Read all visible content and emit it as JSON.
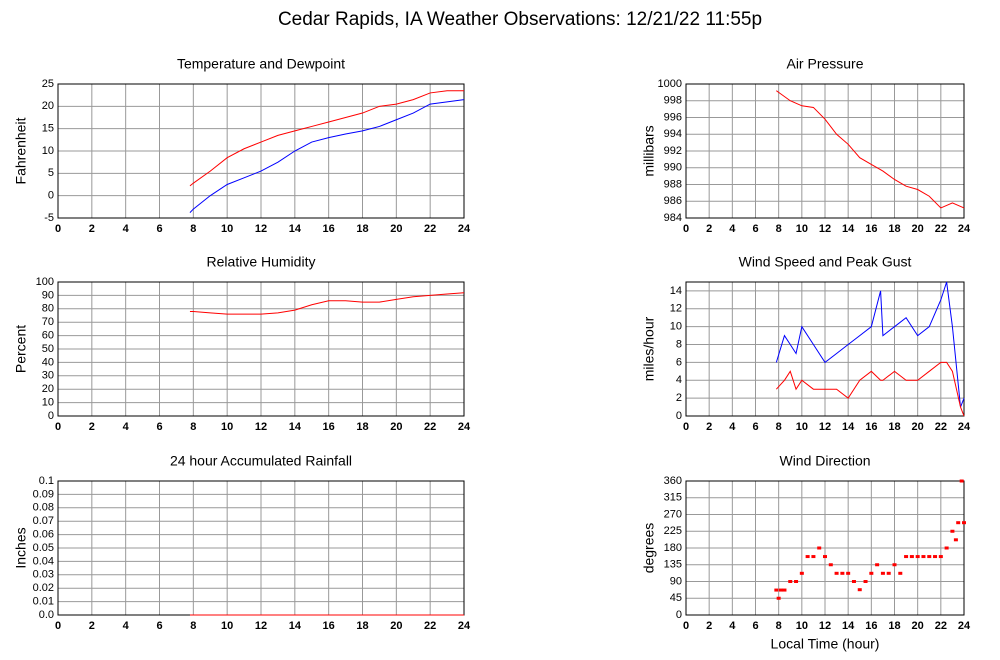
{
  "title": "Cedar Rapids, IA Weather Observations: 12/21/22 11:55p",
  "chart_data": [
    {
      "type": "line",
      "title": "Temperature and Dewpoint",
      "ylabel": "Fahrenheit",
      "x": [
        7.8,
        8,
        9,
        10,
        11,
        12,
        13,
        14,
        15,
        16,
        17,
        18,
        19,
        20,
        21,
        22,
        23,
        24
      ],
      "series": [
        {
          "color": "#ff0000",
          "values": [
            2.2,
            2.8,
            5.5,
            8.5,
            10.5,
            12,
            13.5,
            14.5,
            15.5,
            16.5,
            17.5,
            18.5,
            20,
            20.5,
            21.5,
            23,
            23.5,
            23.5
          ]
        },
        {
          "color": "#0000ff",
          "values": [
            -3.8,
            -3,
            0,
            2.5,
            4,
            5.5,
            7.5,
            10,
            12,
            13,
            13.8,
            14.5,
            15.5,
            17,
            18.5,
            20.5,
            21,
            21.5
          ]
        }
      ],
      "xlim": [
        0,
        24
      ],
      "xticks": [
        0,
        2,
        4,
        6,
        8,
        10,
        12,
        14,
        16,
        18,
        20,
        22,
        24
      ],
      "ylim": [
        -5,
        25
      ],
      "yticks": [
        -5,
        0,
        5,
        10,
        15,
        20,
        25
      ],
      "grid": true
    },
    {
      "type": "line",
      "title": "Air Pressure",
      "ylabel": "millibars",
      "x": [
        7.8,
        8,
        9,
        10,
        11,
        12,
        13,
        14,
        15,
        16,
        17,
        18,
        19,
        20,
        21,
        22,
        23,
        24
      ],
      "series": [
        {
          "color": "#ff0000",
          "values": [
            999.2,
            999,
            998,
            997.4,
            997.2,
            995.8,
            994,
            992.8,
            991.2,
            990.4,
            989.6,
            988.6,
            987.8,
            987.4,
            986.6,
            985.2,
            985.8,
            985.2
          ]
        }
      ],
      "xlim": [
        0,
        24
      ],
      "xticks": [
        0,
        2,
        4,
        6,
        8,
        10,
        12,
        14,
        16,
        18,
        20,
        22,
        24
      ],
      "ylim": [
        984,
        1000
      ],
      "yticks": [
        984,
        986,
        988,
        990,
        992,
        994,
        996,
        998,
        1000
      ],
      "grid": true
    },
    {
      "type": "line",
      "title": "Relative Humidity",
      "ylabel": "Percent",
      "x": [
        7.8,
        8,
        9,
        10,
        11,
        12,
        13,
        14,
        15,
        16,
        17,
        18,
        19,
        20,
        21,
        22,
        23,
        24
      ],
      "series": [
        {
          "color": "#ff0000",
          "values": [
            78,
            78,
            77,
            76,
            76,
            76,
            77,
            79,
            83,
            86,
            86,
            85,
            85,
            87,
            89,
            90,
            91,
            92
          ]
        }
      ],
      "xlim": [
        0,
        24
      ],
      "xticks": [
        0,
        2,
        4,
        6,
        8,
        10,
        12,
        14,
        16,
        18,
        20,
        22,
        24
      ],
      "ylim": [
        0,
        100
      ],
      "yticks": [
        0,
        10,
        20,
        30,
        40,
        50,
        60,
        70,
        80,
        90,
        100
      ],
      "grid": true
    },
    {
      "type": "line",
      "title": "Wind Speed and Peak Gust",
      "ylabel": "miles/hour",
      "x": [
        7.8,
        8.5,
        9,
        9.5,
        10,
        11,
        12,
        13,
        14,
        15,
        16,
        16.8,
        17,
        18,
        19,
        20,
        21,
        22,
        22.5,
        23,
        23.7,
        24
      ],
      "series": [
        {
          "color": "#0000ff",
          "values": [
            6,
            9,
            8,
            7,
            10,
            8,
            6,
            7,
            8,
            9,
            10,
            14,
            9,
            10,
            11,
            9,
            10,
            13,
            15,
            10,
            1,
            2
          ]
        },
        {
          "color": "#ff0000",
          "values": [
            3,
            4,
            5,
            3,
            4,
            3,
            3,
            3,
            2,
            4,
            5,
            4,
            4,
            5,
            4,
            4,
            5,
            6,
            6,
            5,
            1,
            0
          ]
        }
      ],
      "xlim": [
        0,
        24
      ],
      "xticks": [
        0,
        2,
        4,
        6,
        8,
        10,
        12,
        14,
        16,
        18,
        20,
        22,
        24
      ],
      "ylim": [
        0,
        15
      ],
      "yticks": [
        0,
        2,
        4,
        6,
        8,
        10,
        12,
        14
      ],
      "grid": true
    },
    {
      "type": "line",
      "title": "24 hour Accumulated Rainfall",
      "ylabel": "Inches",
      "x": [
        7.8,
        24
      ],
      "series": [
        {
          "color": "#ff0000",
          "values": [
            0,
            0
          ]
        }
      ],
      "xlim": [
        0,
        24
      ],
      "xticks": [
        0,
        2,
        4,
        6,
        8,
        10,
        12,
        14,
        16,
        18,
        20,
        22,
        24
      ],
      "ylim": [
        0,
        0.1
      ],
      "yticks": [
        {
          "value": 0,
          "label": "0.0"
        },
        0.01,
        0.02,
        0.03,
        0.04,
        0.05,
        0.06,
        0.07,
        0.08,
        0.09,
        0.1
      ],
      "grid": true
    },
    {
      "type": "scatter",
      "title": "Wind Direction",
      "ylabel": "degrees",
      "xlabel": "Local Time (hour)",
      "x": [
        7.8,
        8,
        8.2,
        8.5,
        9,
        9.5,
        10,
        10.5,
        11,
        11.5,
        12,
        12.5,
        13,
        13.5,
        14,
        14.5,
        15,
        15.5,
        16,
        16.5,
        17,
        17.5,
        18,
        18.5,
        19,
        19.5,
        20,
        20.5,
        21,
        21.5,
        22,
        22.5,
        23,
        23.3,
        23.5,
        23.8,
        24
      ],
      "series": [
        {
          "color": "#ff0000",
          "values": [
            67,
            45,
            67,
            67,
            90,
            90,
            112,
            157,
            157,
            180,
            157,
            135,
            112,
            112,
            112,
            90,
            68,
            90,
            112,
            135,
            112,
            112,
            135,
            112,
            157,
            157,
            157,
            157,
            157,
            157,
            157,
            180,
            225,
            202,
            248,
            360,
            248
          ]
        }
      ],
      "xlim": [
        0,
        24
      ],
      "xticks": [
        0,
        2,
        4,
        6,
        8,
        10,
        12,
        14,
        16,
        18,
        20,
        22,
        24
      ],
      "ylim": [
        0,
        360
      ],
      "yticks": [
        0,
        45,
        90,
        135,
        180,
        225,
        270,
        315,
        360
      ],
      "grid": true
    }
  ]
}
